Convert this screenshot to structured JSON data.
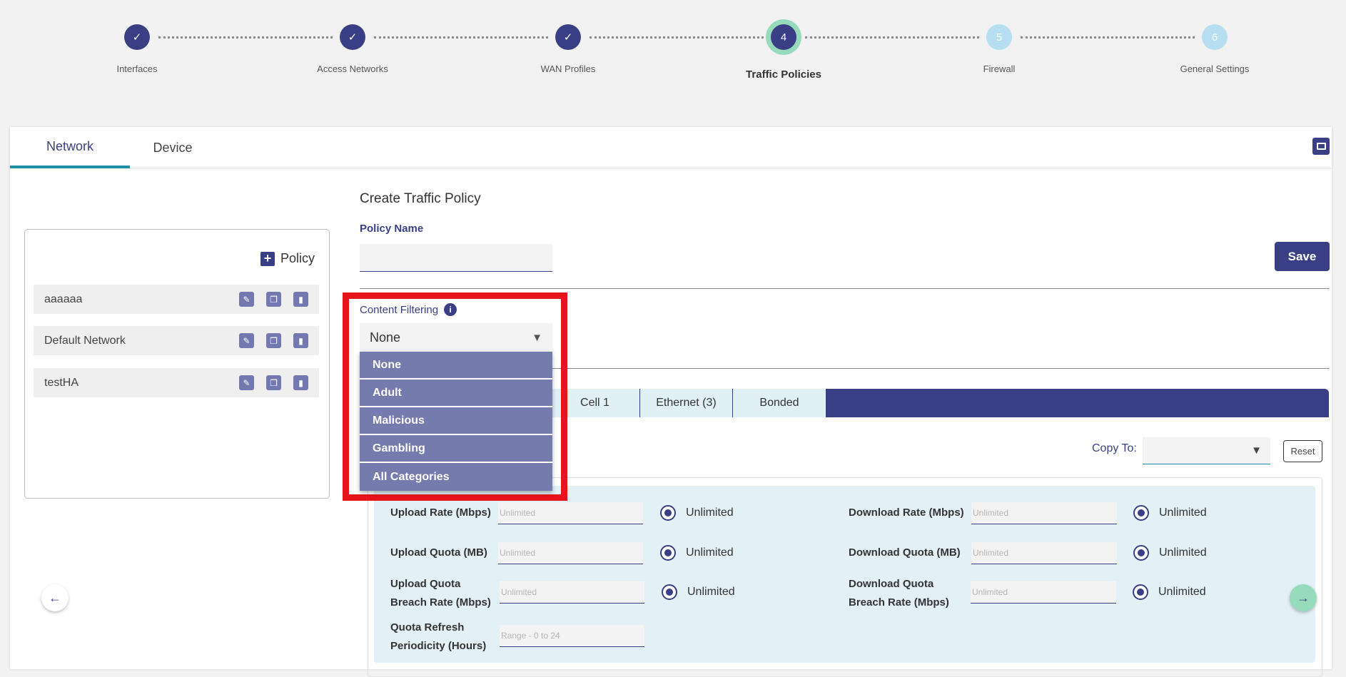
{
  "stepper": {
    "steps": [
      {
        "label": "Interfaces",
        "status": "done",
        "icon": "check-icon"
      },
      {
        "label": "Access Networks",
        "status": "done",
        "icon": "check-icon"
      },
      {
        "label": "WAN Profiles",
        "status": "done",
        "icon": "check-icon"
      },
      {
        "label": "Traffic Policies",
        "status": "current",
        "number": "4"
      },
      {
        "label": "Firewall",
        "status": "future",
        "number": "5"
      },
      {
        "label": "General Settings",
        "status": "future",
        "number": "6"
      }
    ]
  },
  "tabs": {
    "network": "Network",
    "device": "Device",
    "active": "Network"
  },
  "policy_list": {
    "add_label": "Policy",
    "items": [
      {
        "name": "aaaaaa"
      },
      {
        "name": "Default Network"
      },
      {
        "name": "testHA"
      }
    ]
  },
  "form": {
    "title": "Create Traffic Policy",
    "policy_name_label": "Policy Name",
    "policy_name_value": "",
    "save_label": "Save",
    "content_filtering_label": "Content Filtering",
    "content_filtering_value": "None",
    "content_filtering_options": [
      "None",
      "Adult",
      "Malicious",
      "Gambling",
      "All Categories"
    ]
  },
  "wan_tabs": [
    "Cell 1",
    "Ethernet (3)",
    "Bonded"
  ],
  "copy_to": {
    "label": "Copy To:",
    "value": "",
    "reset_label": "Reset"
  },
  "limits": {
    "unlimited_label": "Unlimited",
    "upload_rate": {
      "label": "Upload Rate (Mbps)",
      "placeholder": "Unlimited"
    },
    "download_rate": {
      "label": "Download Rate (Mbps)",
      "placeholder": "Unlimited"
    },
    "upload_quota": {
      "label": "Upload Quota (MB)",
      "placeholder": "Unlimited"
    },
    "download_quota": {
      "label": "Download Quota (MB)",
      "placeholder": "Unlimited"
    },
    "upload_breach_1": "Upload Quota",
    "upload_breach_2": "Breach Rate (Mbps)",
    "upload_breach_placeholder": "Unlimited",
    "download_breach_1": "Download Quota",
    "download_breach_2": "Breach Rate (Mbps)",
    "download_breach_placeholder": "Unlimited",
    "refresh_1": "Quota Refresh",
    "refresh_2": "Periodicity (Hours)",
    "refresh_placeholder": "Range - 0 to 24"
  },
  "colors": {
    "primary": "#3a3f85",
    "highlight": "#e8141c",
    "accent_green": "#96dcbc",
    "dropdown": "#757bad"
  }
}
